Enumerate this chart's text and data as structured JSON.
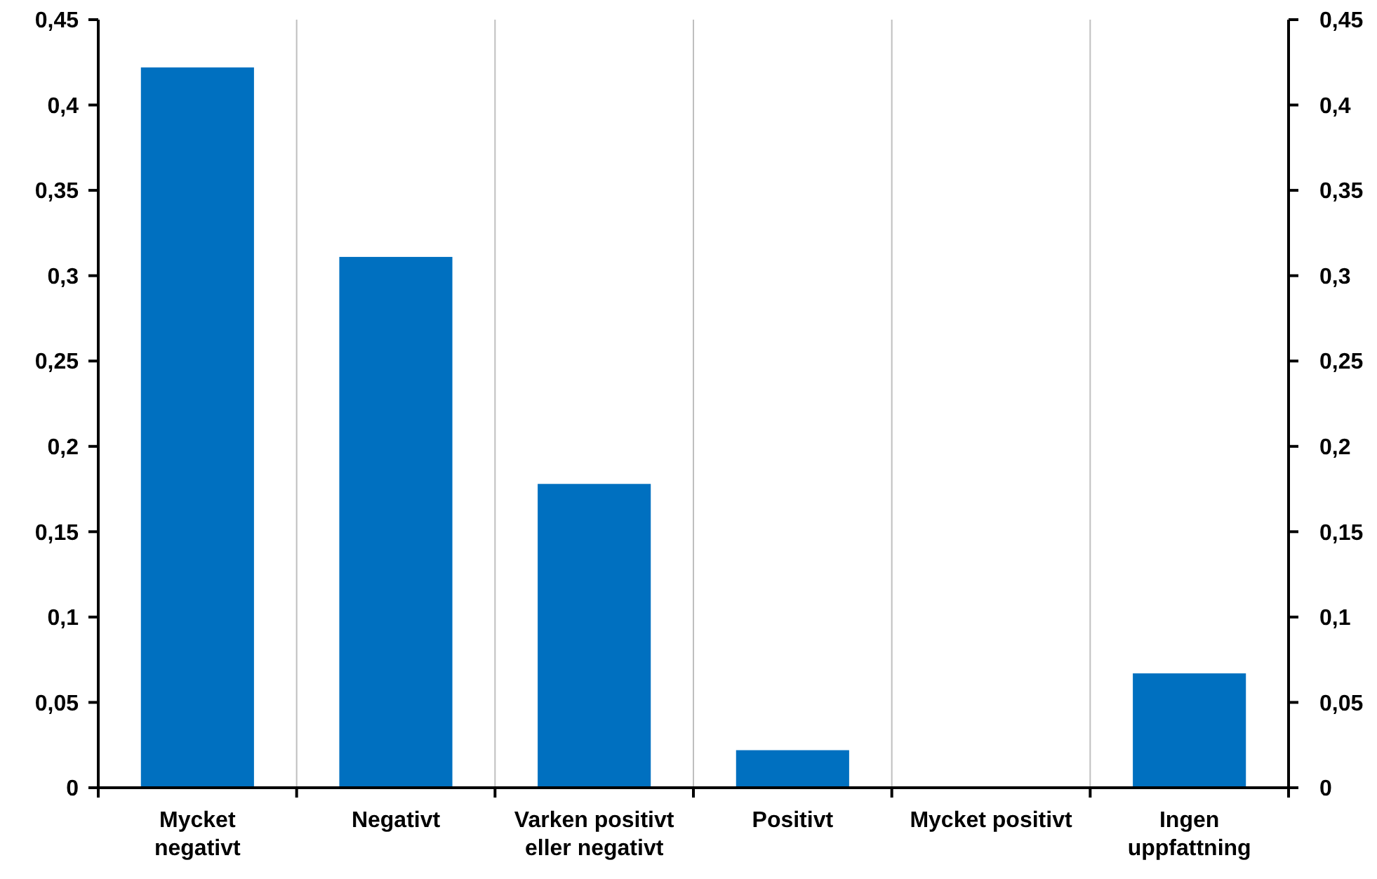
{
  "chart_data": {
    "type": "bar",
    "categories": [
      "Mycket\nnegativt",
      "Negativt",
      "Varken positivt\neller negativt",
      "Positivt",
      "Mycket positivt",
      "Ingen\nuppfattning"
    ],
    "series": [
      {
        "color": "#0070c0",
        "values": [
          0.422,
          0.311,
          0.178,
          0.022,
          0,
          0.067
        ]
      }
    ],
    "ylim": [
      0,
      0.45
    ],
    "yticks": [
      0,
      {
        "value": 0.05,
        "label": "0,05"
      },
      {
        "value": 0.1,
        "label": "0,1"
      },
      {
        "value": 0.15,
        "label": "0,15"
      },
      {
        "value": 0.2,
        "label": "0,2"
      },
      {
        "value": 0.25,
        "label": "0,25"
      },
      {
        "value": 0.3,
        "label": "0,3"
      },
      {
        "value": 0.35,
        "label": "0,35"
      },
      {
        "value": 0.4,
        "label": "0,4"
      },
      {
        "value": 0.45,
        "label": "0,45"
      }
    ],
    "y2lim": [
      0,
      0.45
    ],
    "y2ticks": [
      0,
      {
        "value": 0.05,
        "label": "0,05"
      },
      {
        "value": 0.1,
        "label": "0,1"
      },
      {
        "value": 0.15,
        "label": "0,15"
      },
      {
        "value": 0.2,
        "label": "0,2"
      },
      {
        "value": 0.25,
        "label": "0,25"
      },
      {
        "value": 0.3,
        "label": "0,3"
      },
      {
        "value": 0.35,
        "label": "0,35"
      },
      {
        "value": 0.4,
        "label": "0,4"
      },
      {
        "value": 0.45,
        "label": "0,45"
      }
    ],
    "grid": "x"
  }
}
